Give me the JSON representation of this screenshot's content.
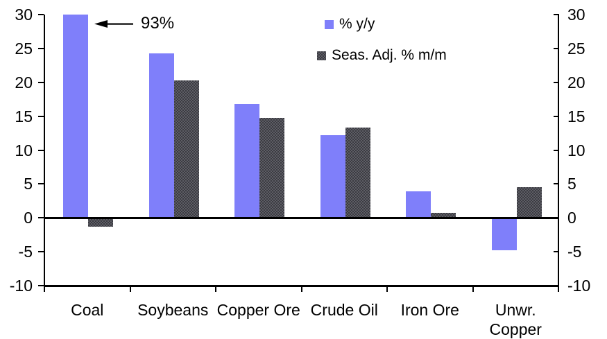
{
  "chart_data": {
    "type": "bar",
    "title": "",
    "xlabel": "",
    "ylabel": "",
    "categories": [
      "Coal",
      "Soybeans",
      "Copper Ore",
      "Crude Oil",
      "Iron Ore",
      "Unwr. Copper"
    ],
    "series": [
      {
        "name": "% y/y",
        "color": "#7f7ffa",
        "values": [
          93,
          24.3,
          16.8,
          12.2,
          3.9,
          -4.8
        ]
      },
      {
        "name": "Seas. Adj. % m/m",
        "color": "#3b3b41",
        "values": [
          -1.3,
          20.3,
          14.8,
          13.3,
          0.7,
          4.5
        ]
      }
    ],
    "ylim": [
      -10,
      30
    ],
    "yticks": [
      30,
      25,
      20,
      15,
      10,
      5,
      0,
      -5,
      -10
    ],
    "y_axis_right_mirror": true,
    "grid": false,
    "legend_position": "top-center",
    "annotation": {
      "text": "93%",
      "target_category": "Coal",
      "target_series": "% y/y",
      "bar_clipped_at": 30
    }
  }
}
